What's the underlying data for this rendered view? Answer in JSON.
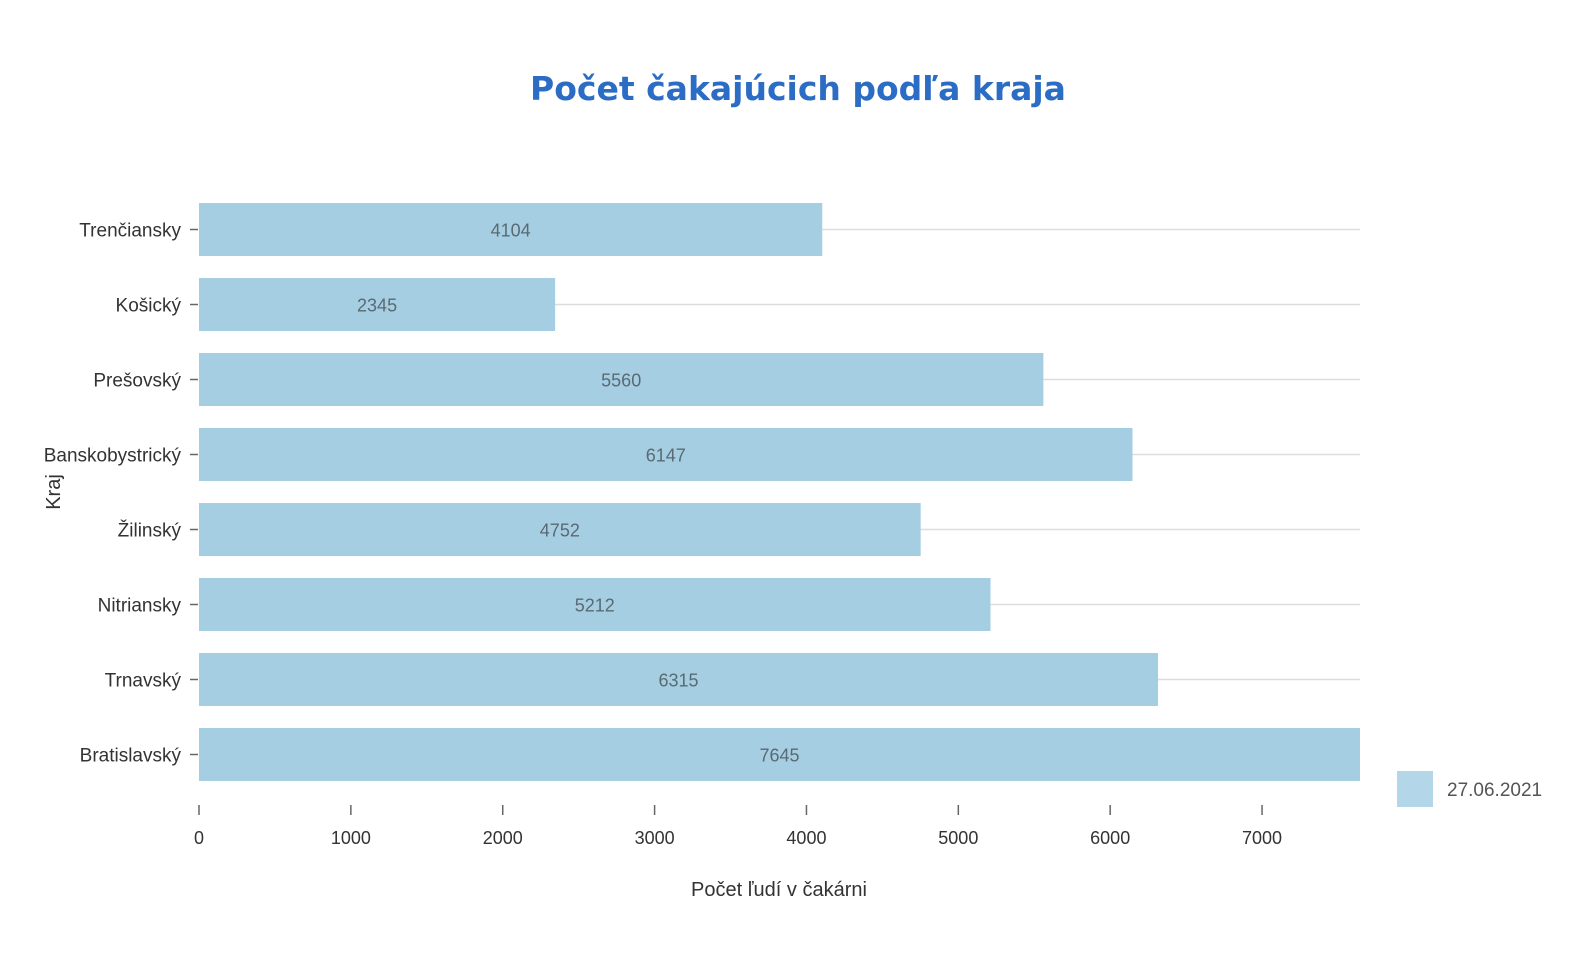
{
  "chart_data": {
    "type": "bar",
    "orientation": "horizontal",
    "title": "Počet čakajúcich podľa kraja",
    "xlabel": "Počet ľudí v čakárni",
    "ylabel": "Kraj",
    "categories": [
      "Trenčiansky",
      "Košický",
      "Prešovský",
      "Banskobystrický",
      "Žilinský",
      "Nitriansky",
      "Trnavský",
      "Bratislavský"
    ],
    "values": [
      4104,
      2345,
      5560,
      6147,
      4752,
      5212,
      6315,
      7645
    ],
    "xlim": [
      0,
      7645
    ],
    "xticks": [
      0,
      1000,
      2000,
      3000,
      4000,
      5000,
      6000,
      7000
    ],
    "grid": true,
    "legend": {
      "position": "bottom-right",
      "entries": [
        "27.06.2021"
      ]
    },
    "colors": {
      "bar": "#a6cee3",
      "legend": "#b3d6e8",
      "title": "#2b6cc4",
      "grid": "#dddddd"
    }
  }
}
